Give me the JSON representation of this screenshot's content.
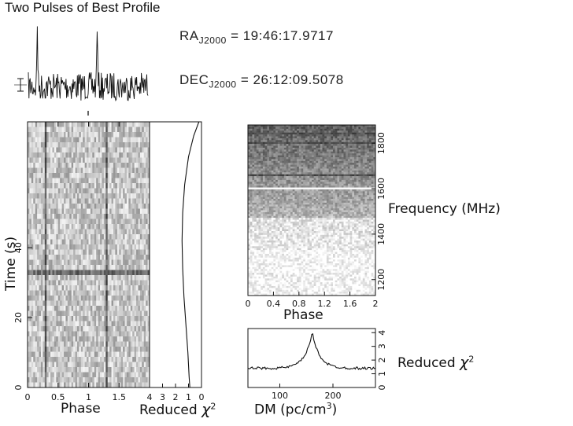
{
  "title": "Two Pulses of Best Profile",
  "position": {
    "ra_label": "RA",
    "ra_sub": "J2000",
    "ra_value": "= 19:46:17.9717",
    "dec_label": "DEC",
    "dec_sub": "J2000",
    "dec_value": "= 26:12:09.5078"
  },
  "labels": {
    "time_phase_x": "Phase",
    "time_y": "Time (s)",
    "redchi_time_x": "Reduced",
    "chi": "χ",
    "chi_sup": "2",
    "freq_phase_x": "Phase",
    "freq_y": "Frequency (MHz)",
    "dm_x": "DM (pc/cm",
    "dm_x_sup": "3",
    "dm_x_close": ")",
    "dm_y": "Reduced"
  },
  "chart_data": [
    {
      "type": "line",
      "name": "pulse-profile",
      "x_range": [
        0,
        2
      ],
      "peak_phases": [
        0.15,
        1.15
      ],
      "peak_height": 1.0,
      "noise_level": 0.17,
      "has_errorbar": true
    },
    {
      "type": "heatmap",
      "name": "time-vs-phase",
      "xlabel": "Phase",
      "ylabel": "Time (s)",
      "xlim": [
        0,
        2
      ],
      "ylim": [
        0,
        76
      ],
      "xticks": [
        0,
        0.5,
        1,
        1.5
      ],
      "xtick_labels": [
        "0",
        "0.5",
        "1",
        "1.5"
      ],
      "yticks": [
        0,
        20,
        40
      ],
      "pulse_phases": [
        0.3,
        1.3
      ],
      "dark_band_time": 33
    },
    {
      "type": "line",
      "name": "time-reduced-chi2",
      "xlabel": "Reduced χ2",
      "xlim": [
        4,
        0
      ],
      "xticks": [
        4,
        3,
        2,
        1,
        0
      ],
      "points": [
        [
          0.2,
          76
        ],
        [
          0.6,
          72
        ],
        [
          1.0,
          66
        ],
        [
          1.3,
          58
        ],
        [
          1.45,
          50
        ],
        [
          1.5,
          42
        ],
        [
          1.45,
          34
        ],
        [
          1.35,
          26
        ],
        [
          1.2,
          18
        ],
        [
          1.05,
          10
        ],
        [
          0.95,
          3
        ],
        [
          0.9,
          0
        ]
      ]
    },
    {
      "type": "heatmap",
      "name": "frequency-vs-phase",
      "xlabel": "Phase",
      "ylabel": "Frequency (MHz)",
      "xlim": [
        0,
        2
      ],
      "ylim": [
        1130,
        1880
      ],
      "xticks": [
        0,
        0.4,
        0.8,
        1.2,
        1.6,
        2
      ],
      "xtick_labels": [
        "0",
        "0.4",
        "0.8",
        "1.2",
        "1.6",
        "2"
      ],
      "yticks": [
        1200,
        1400,
        1600,
        1800
      ],
      "bright_channel_mhz": 1600,
      "dark_channels_mhz": [
        1840,
        1800,
        1660
      ]
    },
    {
      "type": "line",
      "name": "dm-reduced-chi2",
      "xlabel": "DM (pc/cm3)",
      "ylabel": "Reduced χ2",
      "xlim": [
        40,
        280
      ],
      "ylim": [
        0,
        4.3
      ],
      "xticks": [
        100,
        200
      ],
      "yticks": [
        0,
        1,
        2,
        3,
        4
      ],
      "peak_dm": 161,
      "peak_value": 4.0,
      "baseline": 1.4
    }
  ]
}
